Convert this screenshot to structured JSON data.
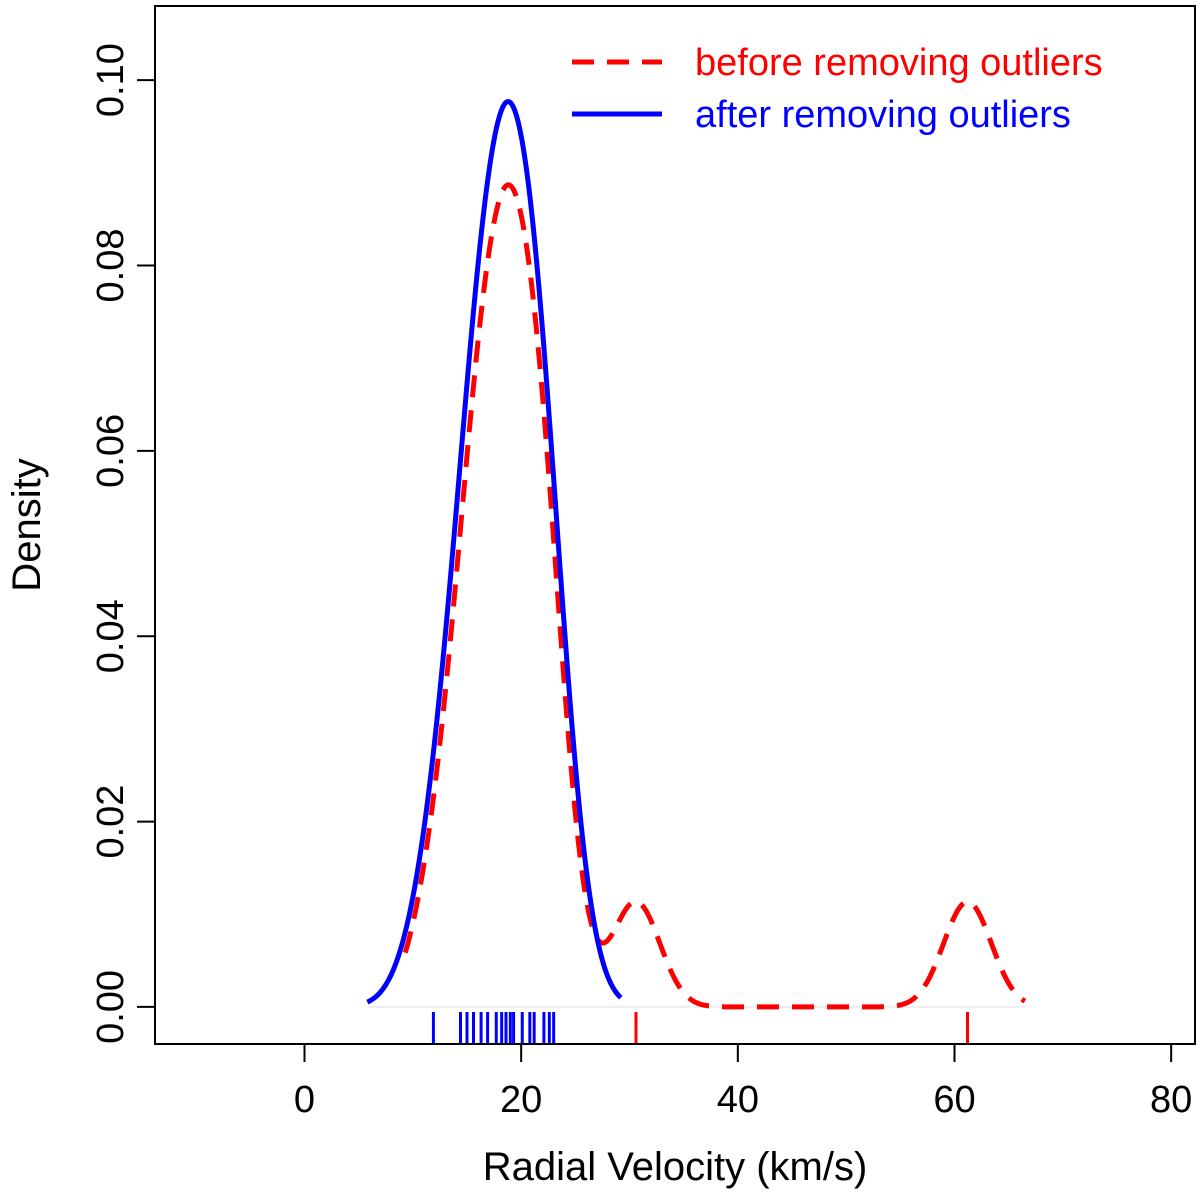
{
  "chart_data": {
    "type": "line",
    "title": "",
    "xlabel": "Radial Velocity (km/s)",
    "ylabel": "Density",
    "xlim": [
      -13.8,
      82.2
    ],
    "ylim": [
      -0.004,
      0.108
    ],
    "xticks": [
      0,
      20,
      40,
      60,
      80
    ],
    "yticks": [
      0.0,
      0.02,
      0.04,
      0.06,
      0.08,
      0.1
    ],
    "ytick_labels": [
      "0.00",
      "0.02",
      "0.04",
      "0.06",
      "0.08",
      "0.10"
    ],
    "legend_position": "top-right",
    "series": [
      {
        "name": "before removing outliers",
        "color": "#ff0000",
        "style": "dashed",
        "kde": {
          "bandwidth": 2.2,
          "from": 9.3,
          "to": 66.5,
          "weights": [
            0.0625,
            0.0625
          ]
        },
        "rug": [
          30.6,
          61.2
        ]
      },
      {
        "name": "after removing outliers",
        "color": "#0000ff",
        "style": "solid",
        "kde": {
          "bandwidth": 2.5,
          "from": 5.8,
          "to": 29.2,
          "weights": []
        },
        "rug": [
          11.9,
          14.4,
          15.0,
          15.6,
          16.3,
          16.9,
          17.7,
          18.2,
          18.6,
          19.0,
          19.3,
          20.1,
          20.8,
          21.2,
          22.1,
          22.6,
          23.0
        ]
      }
    ]
  }
}
